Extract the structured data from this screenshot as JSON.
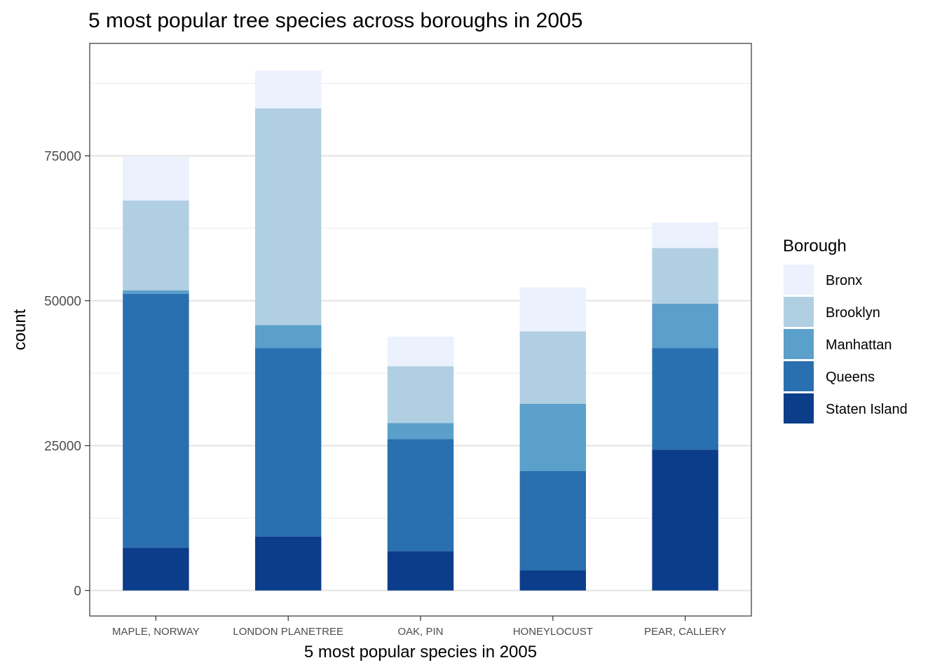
{
  "chart_data": {
    "type": "bar",
    "stacked": true,
    "title": "5 most popular tree species across boroughs in 2005",
    "xlabel": "5 most popular species in 2005",
    "ylabel": "count",
    "categories": [
      "MAPLE, NORWAY",
      "LONDON PLANETREE",
      "OAK, PIN",
      "HONEYLOCUST",
      "PEAR, CALLERY"
    ],
    "y_ticks": [
      0,
      25000,
      50000,
      75000
    ],
    "y_tick_labels": [
      "0",
      "25000",
      "50000",
      "75000"
    ],
    "ylim": [
      -4400,
      94400
    ],
    "grid": true,
    "legend": {
      "title": "Borough",
      "position": "right"
    },
    "series": [
      {
        "name": "Staten Island",
        "color": "#0b3d8a",
        "values": [
          7400,
          9300,
          6800,
          3500,
          24300
        ]
      },
      {
        "name": "Queens",
        "color": "#2a6fb0",
        "values": [
          43800,
          32500,
          19300,
          17100,
          17500
        ]
      },
      {
        "name": "Manhattan",
        "color": "#5b9fcb",
        "values": [
          600,
          4000,
          2800,
          11600,
          7700
        ]
      },
      {
        "name": "Brooklyn",
        "color": "#b0cfe3",
        "values": [
          15500,
          37400,
          9800,
          12500,
          9600
        ]
      },
      {
        "name": "Bronx",
        "color": "#ebf1fd",
        "values": [
          7500,
          6500,
          5100,
          7600,
          4400
        ]
      }
    ]
  }
}
